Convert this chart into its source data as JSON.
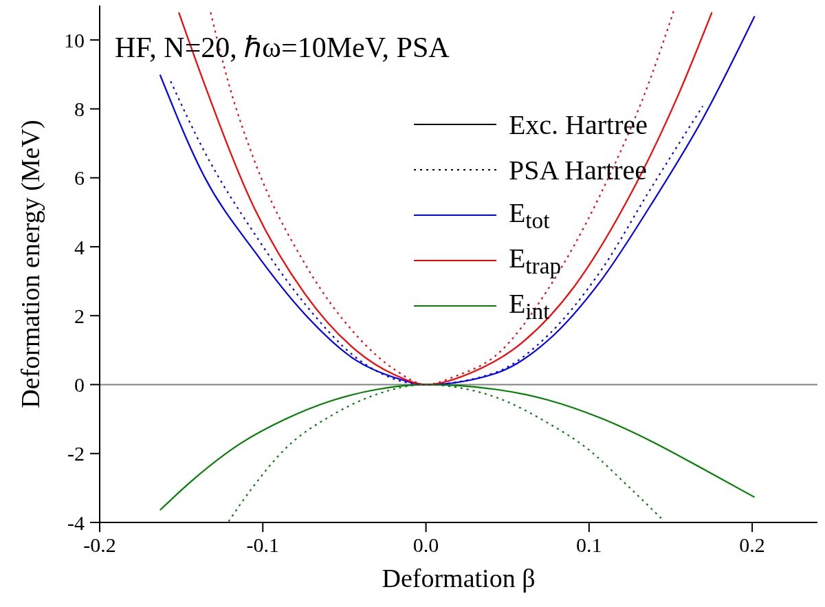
{
  "chart_data": {
    "type": "line",
    "title": "HF, N=20, ℏω=10MeV, PSA",
    "xlabel": "Deformation β",
    "ylabel": "Deformation energy (MeV)",
    "xlim": [
      -0.2,
      0.24
    ],
    "xticks": [
      -0.2,
      -0.1,
      {
        "value": 0,
        "label": "0.0"
      },
      0.1,
      0.2
    ],
    "ylim": [
      -4,
      11
    ],
    "yticks": [
      -4,
      -2,
      0,
      2,
      4,
      6,
      8,
      10
    ],
    "legend": "top right",
    "ref_lines": [
      {
        "axis": "y",
        "value": 0,
        "color": "#808080"
      }
    ],
    "series": [
      {
        "name": "Exc. Hartree",
        "color": "#000000",
        "line_style": "solid"
      },
      {
        "name": "PSA Hartree",
        "color": "#000000",
        "line_style": "dotted"
      },
      {
        "name": "E$_{tot}$",
        "color": "#0000ff",
        "line_style": "solid",
        "x": [
          -0.163,
          -0.136,
          -0.105,
          -0.074,
          -0.043,
          -0.019,
          0,
          0.043,
          0.075,
          0.107,
          0.138,
          0.17,
          0.2015
        ],
        "values": [
          8.99,
          6.05,
          3.86,
          2.03,
          0.71,
          0.2,
          0,
          0.33,
          1.29,
          3.0,
          5.22,
          7.74,
          10.69
        ]
      },
      {
        "name": "E$_{trap}$",
        "color": "#ff0000",
        "line_style": "solid",
        "x": [
          -0.1515,
          -0.136,
          -0.105,
          -0.074,
          -0.043,
          -0.019,
          0,
          0.027,
          0.059,
          0.091,
          0.122,
          0.154,
          0.1753
        ],
        "values": [
          10.8,
          8.75,
          5.1,
          2.62,
          1.0,
          0.28,
          0,
          0.33,
          1.22,
          2.85,
          5.22,
          8.33,
          10.8
        ]
      },
      {
        "name": "E$_{int}$",
        "color": "#008000",
        "line_style": "solid",
        "x": [
          -0.163,
          -0.143,
          -0.114,
          -0.086,
          -0.058,
          -0.03,
          0,
          0.043,
          0.075,
          0.107,
          0.138,
          0.17,
          0.2015
        ],
        "values": [
          -3.64,
          -2.77,
          -1.72,
          -1.0,
          -0.47,
          -0.14,
          0,
          -0.14,
          -0.45,
          -0.97,
          -1.64,
          -2.45,
          -3.27
        ]
      },
      {
        "color": "#0000ff",
        "line_style": "dotted",
        "x": [
          -0.1565,
          -0.136,
          -0.105,
          -0.074,
          -0.043,
          0,
          0.043,
          0.075,
          0.107,
          0.138,
          0.1697
        ],
        "values": [
          8.8,
          6.78,
          4.37,
          2.33,
          0.79,
          0,
          0.36,
          1.44,
          3.29,
          5.7,
          8.08
        ]
      },
      {
        "color": "#ff0000",
        "line_style": "dotted",
        "x": [
          -0.132,
          -0.121,
          -0.105,
          -0.074,
          -0.043,
          -0.019,
          0,
          0.019,
          0.043,
          0.075,
          0.107,
          0.138,
          0.1525
        ],
        "values": [
          10.8,
          8.75,
          6.48,
          3.49,
          1.45,
          0.43,
          0,
          0.26,
          0.85,
          2.78,
          5.52,
          8.93,
          10.93
        ]
      },
      {
        "color": "#008000",
        "line_style": "dotted",
        "x": [
          -0.121,
          -0.107,
          -0.086,
          -0.058,
          -0.03,
          0,
          0.019,
          0.043,
          0.075,
          0.099,
          0.122,
          0.1455
        ],
        "values": [
          -3.97,
          -3.03,
          -1.85,
          -0.9,
          -0.28,
          0,
          -0.08,
          -0.37,
          -1.12,
          -1.86,
          -2.86,
          -3.94
        ]
      }
    ]
  }
}
